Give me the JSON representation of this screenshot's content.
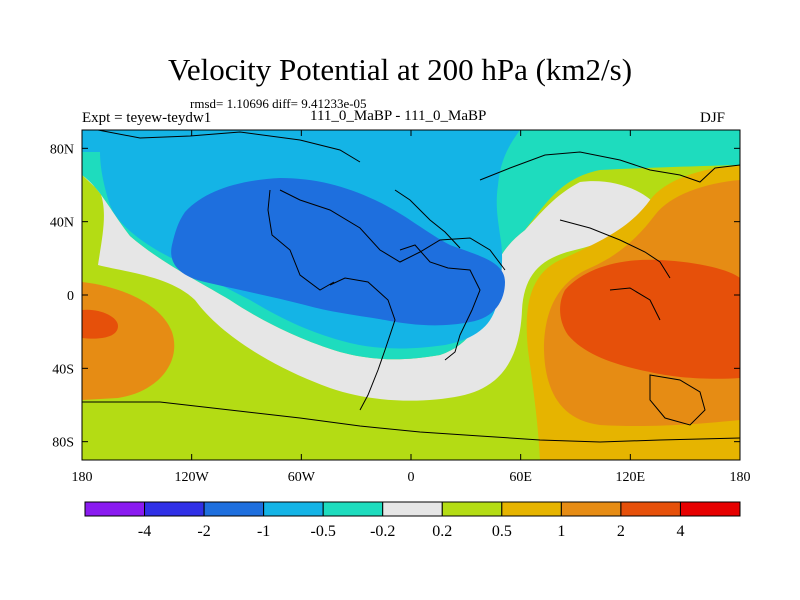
{
  "title": "Velocity Potential at 200 hPa (km2/s)",
  "stats": "rmsd= 1.10696 diff= 9.41233e-05",
  "left_label": "Expt = teyew-teydw1",
  "center_label": "111_0_MaBP - 111_0_MaBP",
  "right_label": "DJF",
  "map": {
    "projection": "cylindrical-equidistant",
    "x_ticks": [
      {
        "lon": -180,
        "label": "180"
      },
      {
        "lon": -120,
        "label": "120W"
      },
      {
        "lon": -60,
        "label": "60W"
      },
      {
        "lon": 0,
        "label": "0"
      },
      {
        "lon": 60,
        "label": "60E"
      },
      {
        "lon": 120,
        "label": "120E"
      },
      {
        "lon": 180,
        "label": "180"
      }
    ],
    "y_ticks": [
      {
        "lat": 80,
        "label": "80N"
      },
      {
        "lat": 40,
        "label": "40N"
      },
      {
        "lat": 0,
        "label": "0"
      },
      {
        "lat": -40,
        "label": "40S"
      },
      {
        "lat": -80,
        "label": "80S"
      }
    ],
    "lon_range": [
      -180,
      180
    ],
    "lat_range": [
      -90,
      90
    ]
  },
  "colorbar": {
    "colors": [
      "#8a1bf0",
      "#3030e6",
      "#1e6fde",
      "#14b4e6",
      "#1edcbe",
      "#e6e6e6",
      "#b4dc14",
      "#e6b400",
      "#e68c14",
      "#e6500a",
      "#e60000"
    ],
    "labels": [
      "-4",
      "-2",
      "-1",
      "-0.5",
      "-0.2",
      "0.2",
      "0.5",
      "1",
      "2",
      "4"
    ]
  },
  "colors": {
    "lt_blue": "#14b4e6",
    "blue": "#1e6fde",
    "cyan_green": "#1edcbe",
    "grey": "#e6e6e6",
    "yellow_green": "#b4dc14",
    "gold": "#e6b400",
    "orange": "#e68c14",
    "red_orange": "#e6500a"
  }
}
